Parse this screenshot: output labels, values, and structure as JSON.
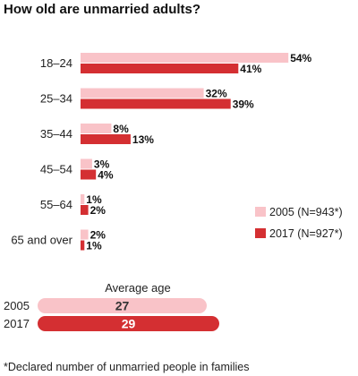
{
  "chart_data": {
    "type": "bar",
    "orientation": "horizontal",
    "title": "How old are unmarried adults?",
    "categories": [
      "18–24",
      "25–34",
      "35–44",
      "45–54",
      "55–64",
      "65 and over"
    ],
    "series": [
      {
        "name": "2005 (N=943*)",
        "color": "#f9c3c8",
        "values": [
          54,
          32,
          8,
          3,
          1,
          2
        ],
        "labels": [
          "54%",
          "32%",
          "8%",
          "3%",
          "1%",
          "2%"
        ]
      },
      {
        "name": "2017 (N=927*)",
        "color": "#d42f32",
        "values": [
          41,
          39,
          13,
          4,
          2,
          1
        ],
        "labels": [
          "41%",
          "39%",
          "13%",
          "4%",
          "2%",
          "1%"
        ]
      }
    ],
    "xlim": [
      0,
      60
    ],
    "grid": false,
    "legend_position": "right"
  },
  "average_age": {
    "title": "Average age",
    "xlim": [
      0,
      34
    ],
    "rows": [
      {
        "year": "2005",
        "value": 27,
        "label": "27",
        "color": "#f9c3c8",
        "text_color": "#333333"
      },
      {
        "year": "2017",
        "value": 29,
        "label": "29",
        "color": "#d42f32",
        "text_color": "#ffffff"
      }
    ]
  },
  "footnote": "*Declared number of unmarried people in families"
}
